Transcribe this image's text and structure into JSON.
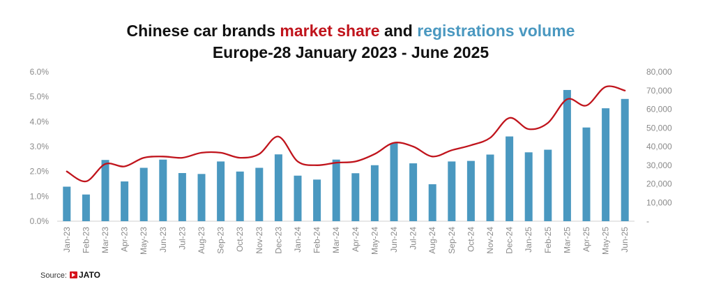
{
  "chart_data": {
    "type": "bar+line",
    "title": {
      "line1": [
        {
          "text": "Chinese car brands ",
          "color": "#111111"
        },
        {
          "text": "market share",
          "color": "#c0141c"
        },
        {
          "text": " and ",
          "color": "#111111"
        },
        {
          "text": "registrations volume",
          "color": "#4a98c0"
        }
      ],
      "line2": "Europe-28 January 2023 - June 2025"
    },
    "categories": [
      "Jan-23",
      "Feb-23",
      "Mar-23",
      "Apr-23",
      "May-23",
      "Jun-23",
      "Jul-23",
      "Aug-23",
      "Sep-23",
      "Oct-23",
      "Nov-23",
      "Dec-23",
      "Jan-24",
      "Feb-24",
      "Mar-24",
      "Apr-24",
      "May-24",
      "Jun-24",
      "Jul-24",
      "Aug-24",
      "Sep-24",
      "Oct-24",
      "Nov-24",
      "Dec-24",
      "Jan-25",
      "Feb-25",
      "Mar-25",
      "Apr-25",
      "May-25",
      "Jun-25"
    ],
    "series": [
      {
        "name": "registrations volume",
        "kind": "bar",
        "axis": "right",
        "color": "#4a98c0",
        "values": [
          18500,
          14300,
          32800,
          21300,
          28600,
          33000,
          25800,
          25300,
          32000,
          26600,
          28600,
          35800,
          24400,
          22300,
          33000,
          25700,
          30000,
          41800,
          31000,
          19800,
          32000,
          32300,
          35700,
          45400,
          36900,
          38300,
          70300,
          50200,
          60500,
          65500
        ]
      },
      {
        "name": "market share",
        "kind": "line",
        "axis": "left",
        "color": "#c0141c",
        "values": [
          2.0,
          1.6,
          2.3,
          2.2,
          2.55,
          2.6,
          2.55,
          2.75,
          2.75,
          2.55,
          2.7,
          3.4,
          2.4,
          2.25,
          2.35,
          2.4,
          2.7,
          3.15,
          3.0,
          2.6,
          2.85,
          3.05,
          3.35,
          4.15,
          3.7,
          3.95,
          4.9,
          4.65,
          5.4,
          5.25
        ]
      }
    ],
    "y_left": {
      "min": 0,
      "max": 6,
      "ticks": [
        "0.0%",
        "1.0%",
        "2.0%",
        "3.0%",
        "4.0%",
        "5.0%",
        "6.0%"
      ]
    },
    "y_right": {
      "min": 0,
      "max": 80000,
      "ticks": [
        "-",
        "10,000",
        "20,000",
        "30,000",
        "40,000",
        "50,000",
        "60,000",
        "70,000",
        "80,000"
      ]
    },
    "grid": false,
    "source_label": "Source:",
    "source_brand": "JATO",
    "brand_color": "#d6141c"
  }
}
